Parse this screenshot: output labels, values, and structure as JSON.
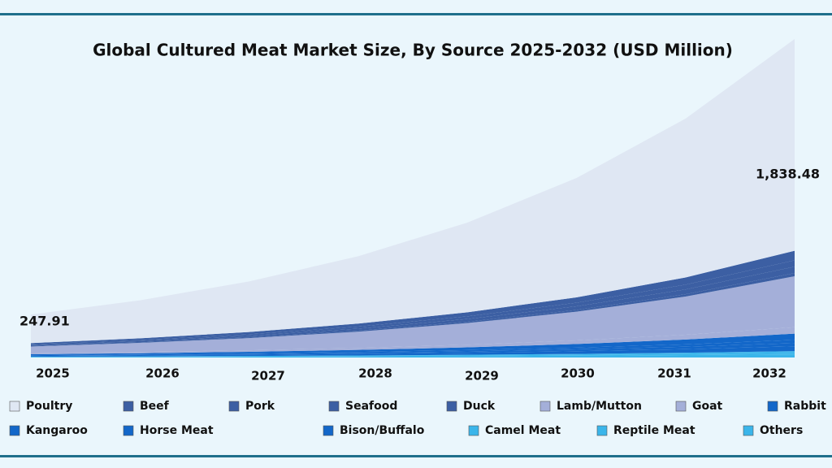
{
  "chart_data": {
    "type": "stacked_area",
    "title": "Global Cultured Meat Market Size, By Source 2025-2032 (USD Million)",
    "categories": [
      "2025",
      "2026",
      "2027",
      "2028",
      "2029",
      "2030",
      "2031",
      "2032"
    ],
    "annotations": [
      "247.91",
      "1,838.48"
    ],
    "series": [
      {
        "name": "Poultry",
        "color": "#dfe7f3",
        "values": [
          164.9,
          219.5,
          292.1,
          388.8,
          517.6,
          688.9,
          917.0,
          1222.6
        ]
      },
      {
        "name": "Beef",
        "color": "#3c5fa3",
        "values": [
          7.4,
          9.9,
          13.2,
          17.5,
          23.3,
          31.1,
          41.4,
          55.2
        ]
      },
      {
        "name": "Pork",
        "color": "#3c5fa3",
        "values": [
          5.0,
          6.6,
          8.8,
          11.7,
          15.6,
          20.7,
          27.6,
          36.8
        ]
      },
      {
        "name": "Seafood",
        "color": "#3c5fa3",
        "values": [
          5.0,
          6.6,
          8.8,
          11.7,
          15.6,
          20.7,
          27.6,
          36.8
        ]
      },
      {
        "name": "Duck",
        "color": "#3c5fa3",
        "values": [
          2.5,
          3.3,
          4.4,
          5.8,
          7.8,
          10.4,
          13.8,
          18.4
        ]
      },
      {
        "name": "Lamb/Mutton",
        "color": "#a4afd9",
        "values": [
          39.7,
          52.8,
          70.3,
          93.6,
          124.5,
          165.8,
          220.6,
          294.2
        ]
      },
      {
        "name": "Goat",
        "color": "#a4afd9",
        "values": [
          5.0,
          6.6,
          8.8,
          11.7,
          15.6,
          20.7,
          27.6,
          36.8
        ]
      },
      {
        "name": "Rabbit",
        "color": "#1367c9",
        "values": [
          5.0,
          6.6,
          8.8,
          11.7,
          15.6,
          20.7,
          27.6,
          36.8
        ]
      },
      {
        "name": "Kangaroo",
        "color": "#1367c9",
        "values": [
          2.5,
          3.3,
          4.4,
          5.8,
          7.8,
          10.4,
          13.8,
          18.4
        ]
      },
      {
        "name": "Horse Meat",
        "color": "#1367c9",
        "values": [
          2.5,
          3.3,
          4.4,
          5.8,
          7.8,
          10.4,
          13.8,
          18.4
        ]
      },
      {
        "name": "Bison/Buffalo",
        "color": "#1367c9",
        "values": [
          3.7,
          5.0,
          6.6,
          8.8,
          11.7,
          15.5,
          20.7,
          27.6
        ]
      },
      {
        "name": "Camel Meat",
        "color": "#3ab5ea",
        "values": [
          1.2,
          1.7,
          2.2,
          2.9,
          3.9,
          5.2,
          6.9,
          9.2
        ]
      },
      {
        "name": "Reptile Meat",
        "color": "#3ab5ea",
        "values": [
          1.2,
          1.7,
          2.2,
          2.9,
          3.9,
          5.2,
          6.9,
          9.2
        ]
      },
      {
        "name": "Others",
        "color": "#3ab5ea",
        "values": [
          2.5,
          3.3,
          4.4,
          5.8,
          7.8,
          10.4,
          13.8,
          18.4
        ]
      }
    ]
  }
}
